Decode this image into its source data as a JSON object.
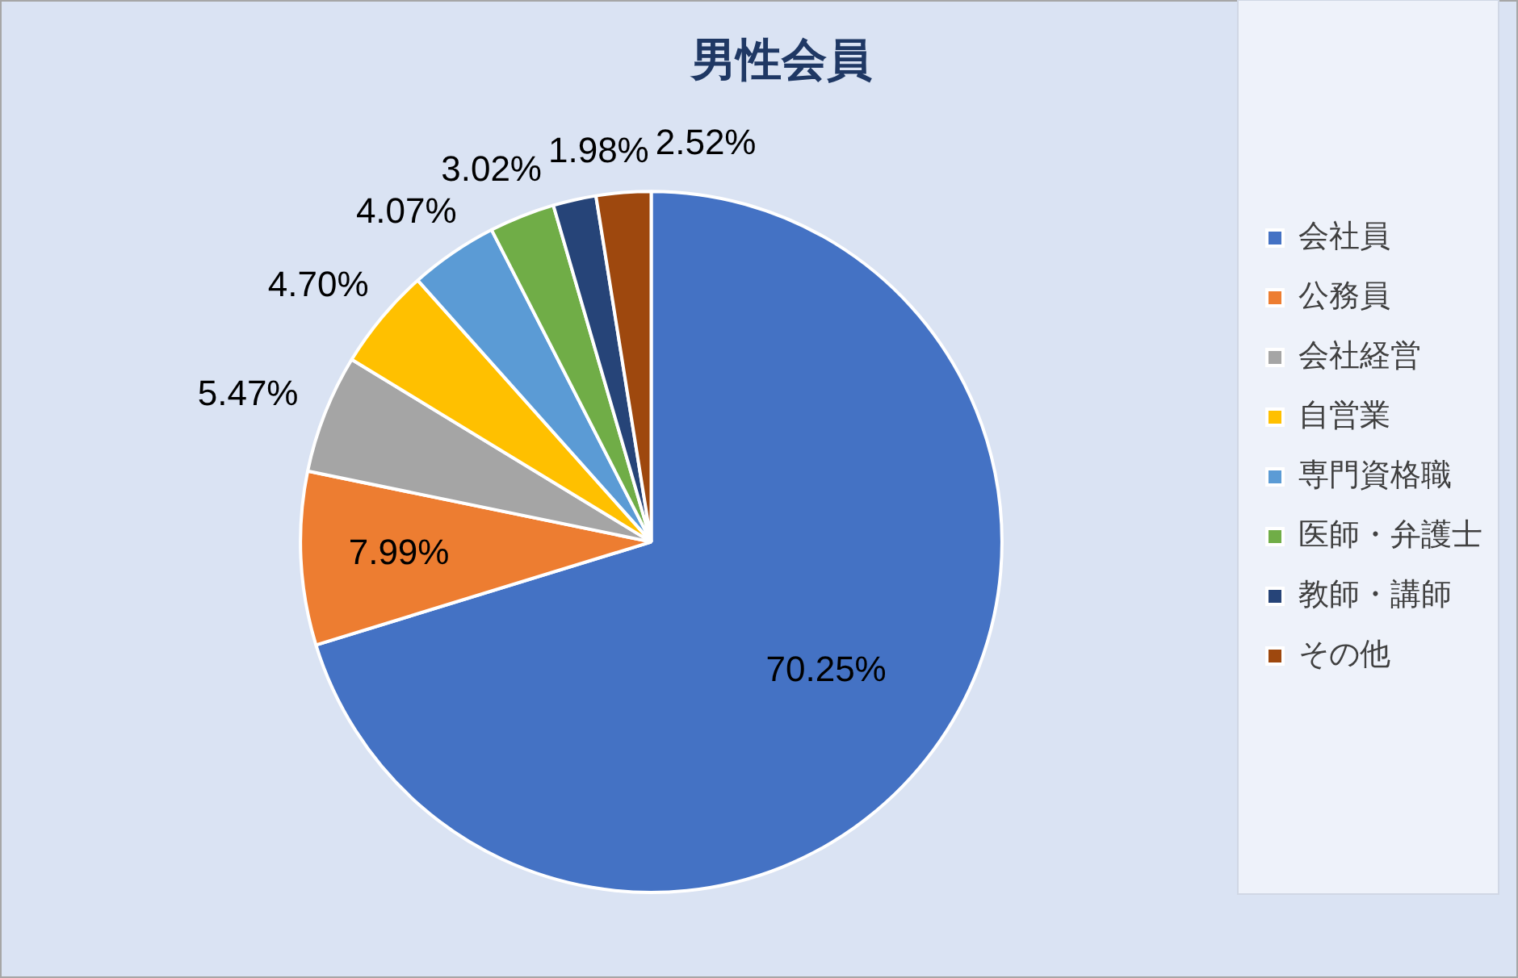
{
  "chart_data": {
    "type": "pie",
    "title": "男性会員",
    "categories": [
      "会社員",
      "公務員",
      "会社経営",
      "自営業",
      "専門資格職",
      "医師・弁護士",
      "教師・講師",
      "その他"
    ],
    "values": [
      70.25,
      7.99,
      5.47,
      4.7,
      4.07,
      3.02,
      1.98,
      2.52
    ],
    "value_labels": [
      "70.25%",
      "7.99%",
      "5.47%",
      "4.70%",
      "4.07%",
      "3.02%",
      "1.98%",
      "2.52%"
    ],
    "colors": [
      "#4472c4",
      "#ed7d31",
      "#a5a5a5",
      "#ffc000",
      "#5b9bd5",
      "#70ad47",
      "#264478",
      "#9e480e"
    ],
    "legend": "right"
  }
}
